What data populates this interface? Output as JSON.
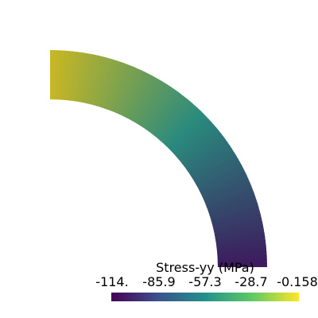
{
  "scalar_bar": {
    "title": "Stress-yy (MPa)",
    "range": [
      -114,
      -0.158
    ],
    "tick_labels": [
      "-114.",
      "-85.9",
      "-57.3",
      "-28.7",
      "-0.158"
    ],
    "colormap": "viridis",
    "colormap_stops": [
      "#440154",
      "#3b528b",
      "#21918c",
      "#5ec962",
      "#fde725"
    ]
  },
  "field": {
    "name": "Stress-yy",
    "shape": "quarter-annulus",
    "value_at_top_end": -0.158,
    "value_at_bottom_end": -114,
    "colors": {
      "top_end": "#c9b823",
      "mid_outer": "#2a8a7e",
      "bottom_end": "#3d1a5e"
    }
  }
}
